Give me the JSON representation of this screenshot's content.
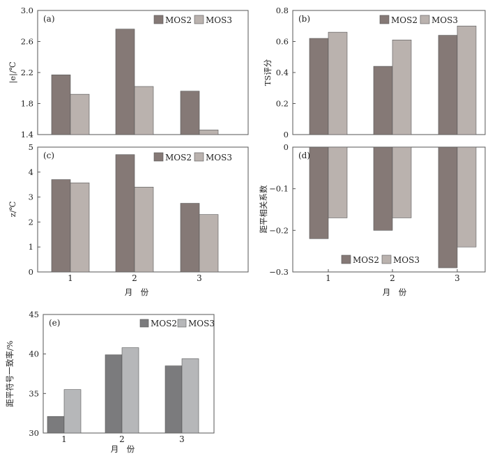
{
  "chart_data": [
    {
      "id": "a",
      "panel_label": "(a)",
      "type": "bar",
      "categories": [
        "1",
        "2",
        "3"
      ],
      "series": [
        {
          "name": "MOS2",
          "values": [
            2.17,
            2.76,
            1.96
          ]
        },
        {
          "name": "MOS3",
          "values": [
            1.92,
            2.02,
            1.46
          ]
        }
      ],
      "ylabel": "|e|/℃",
      "ylim": [
        1.4,
        3.0
      ],
      "yticks": [
        "1.4",
        "1.8",
        "2.2",
        "2.6",
        "3.0"
      ],
      "xlabel": ""
    },
    {
      "id": "b",
      "panel_label": "(b)",
      "type": "bar",
      "categories": [
        "1",
        "2",
        "3"
      ],
      "series": [
        {
          "name": "MOS2",
          "values": [
            0.62,
            0.44,
            0.64
          ]
        },
        {
          "name": "MOS3",
          "values": [
            0.66,
            0.61,
            0.7
          ]
        }
      ],
      "ylabel": "TS评分",
      "ylim": [
        0,
        0.8
      ],
      "yticks": [
        "0",
        "0.2",
        "0.4",
        "0.6",
        "0.8"
      ],
      "xlabel": ""
    },
    {
      "id": "c",
      "panel_label": "(c)",
      "type": "bar",
      "categories": [
        "1",
        "2",
        "3"
      ],
      "series": [
        {
          "name": "MOS2",
          "values": [
            3.7,
            4.7,
            2.75
          ]
        },
        {
          "name": "MOS3",
          "values": [
            3.57,
            3.4,
            2.3
          ]
        }
      ],
      "ylabel": "z/℃",
      "ylim": [
        0,
        5
      ],
      "yticks": [
        "0",
        "1",
        "2",
        "3",
        "4",
        "5"
      ],
      "xlabel": "月　份"
    },
    {
      "id": "d",
      "panel_label": "(d)",
      "type": "bar",
      "categories": [
        "1",
        "2",
        "3"
      ],
      "series": [
        {
          "name": "MOS2",
          "values": [
            -0.22,
            -0.2,
            -0.29
          ]
        },
        {
          "name": "MOS3",
          "values": [
            -0.17,
            -0.17,
            -0.24
          ]
        }
      ],
      "ylabel": "距平相关系数",
      "ylim": [
        -0.3,
        0
      ],
      "yticks": [
        "0",
        "−0.1",
        "−0.2",
        "−0.3"
      ],
      "xlabel": "月　份"
    },
    {
      "id": "e",
      "panel_label": "(e)",
      "type": "bar",
      "categories": [
        "1",
        "2",
        "3"
      ],
      "series": [
        {
          "name": "MOS2",
          "values": [
            32.1,
            39.9,
            38.5
          ]
        },
        {
          "name": "MOS3",
          "values": [
            35.5,
            40.8,
            39.4
          ]
        }
      ],
      "ylabel": "距平符号一致率/%",
      "ylim": [
        30,
        45
      ],
      "yticks": [
        "30",
        "35",
        "40",
        "45"
      ],
      "xlabel": "月　份"
    }
  ],
  "colors": {
    "top": {
      "MOS2": "#857976",
      "MOS3": "#bab2ae"
    },
    "bottom": {
      "MOS2": "#7b7b7d",
      "MOS3": "#b6b7b9"
    }
  }
}
